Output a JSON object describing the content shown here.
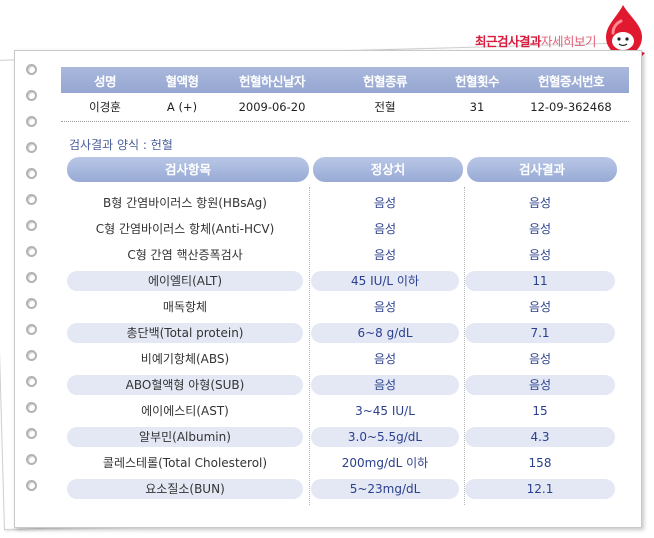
{
  "page_title": {
    "bold": "최근검사결과",
    "light": "자세히보기"
  },
  "donor_table": {
    "headers": [
      "성명",
      "혈액형",
      "헌혈하신날자",
      "헌혈종류",
      "헌혈횟수",
      "헌혈증서번호"
    ],
    "values": [
      "이경훈",
      "A (+)",
      "2009-06-20",
      "전혈",
      "31",
      "12-09-362468"
    ]
  },
  "result_format": "검사결과 양식 : 헌혈",
  "results_table": {
    "headers": [
      "검사항목",
      "정상치",
      "검사결과"
    ],
    "rows": [
      [
        "B형 간염바이러스 항원(HBsAg)",
        "음성",
        "음성"
      ],
      [
        "C형 간염바이러스 항체(Anti-HCV)",
        "음성",
        "음성"
      ],
      [
        "C형 간염 핵산증폭검사",
        "음성",
        "음성"
      ],
      [
        "에이엘티(ALT)",
        "45 IU/L 이하",
        "11"
      ],
      [
        "매독항체",
        "음성",
        "음성"
      ],
      [
        "총단백(Total protein)",
        "6~8 g/dL",
        "7.1"
      ],
      [
        "비예기항체(ABS)",
        "음성",
        "음성"
      ],
      [
        "ABO혈액형 아형(SUB)",
        "음성",
        "음성"
      ],
      [
        "에이에스티(AST)",
        "3~45 IU/L",
        "15"
      ],
      [
        "알부민(Albumin)",
        "3.0~5.5g/dL",
        "4.3"
      ],
      [
        "콜레스테롤(Total Cholesterol)",
        "200mg/dL 이하",
        "158"
      ],
      [
        "요소질소(BUN)",
        "5~23mg/dL",
        "12.1"
      ]
    ]
  },
  "colors": {
    "header_blue": "#95a6d1",
    "value_text": "#2a3f8f",
    "title_red": "#d71b3c",
    "alt_row": "#e3e8f4"
  },
  "icons": {
    "mascot": "blood-drop-mascot-icon",
    "binder_ring": "binder-ring-icon"
  }
}
